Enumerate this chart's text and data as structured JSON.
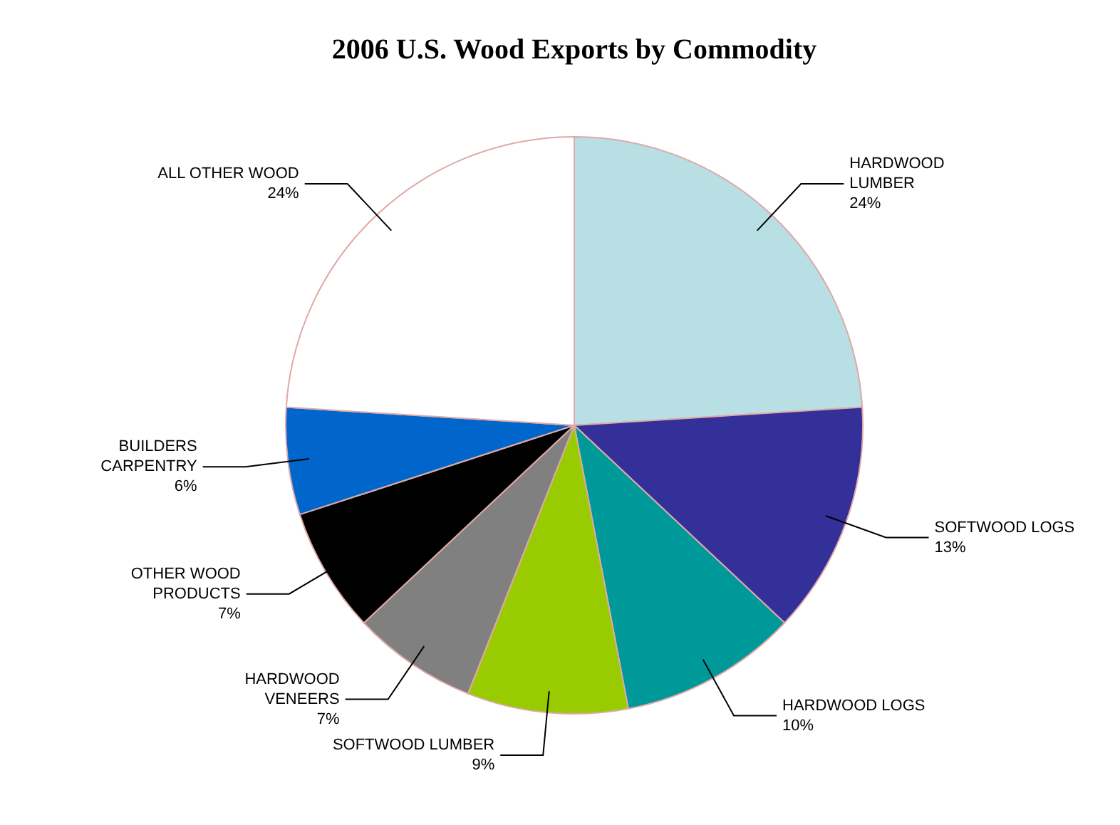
{
  "chart_data": {
    "type": "pie",
    "title": "2006 U.S. Wood Exports by Commodity",
    "categories": [
      "HARDWOOD LUMBER",
      "SOFTWOOD LOGS",
      "HARDWOOD LOGS",
      "SOFTWOOD LUMBER",
      "HARDWOOD VENEERS",
      "OTHER WOOD PRODUCTS",
      "BUILDERS CARPENTRY",
      "ALL OTHER WOOD"
    ],
    "values": [
      24,
      13,
      10,
      9,
      7,
      7,
      6,
      24
    ],
    "colors": [
      "#b8dfe3",
      "#33309a",
      "#009999",
      "#99cc00",
      "#808080",
      "#000000",
      "#0066cc",
      "#ffffff"
    ],
    "value_labels": [
      "24%",
      "13%",
      "10%",
      "9%",
      "7%",
      "7%",
      "6%",
      "24%"
    ],
    "legend": false
  }
}
